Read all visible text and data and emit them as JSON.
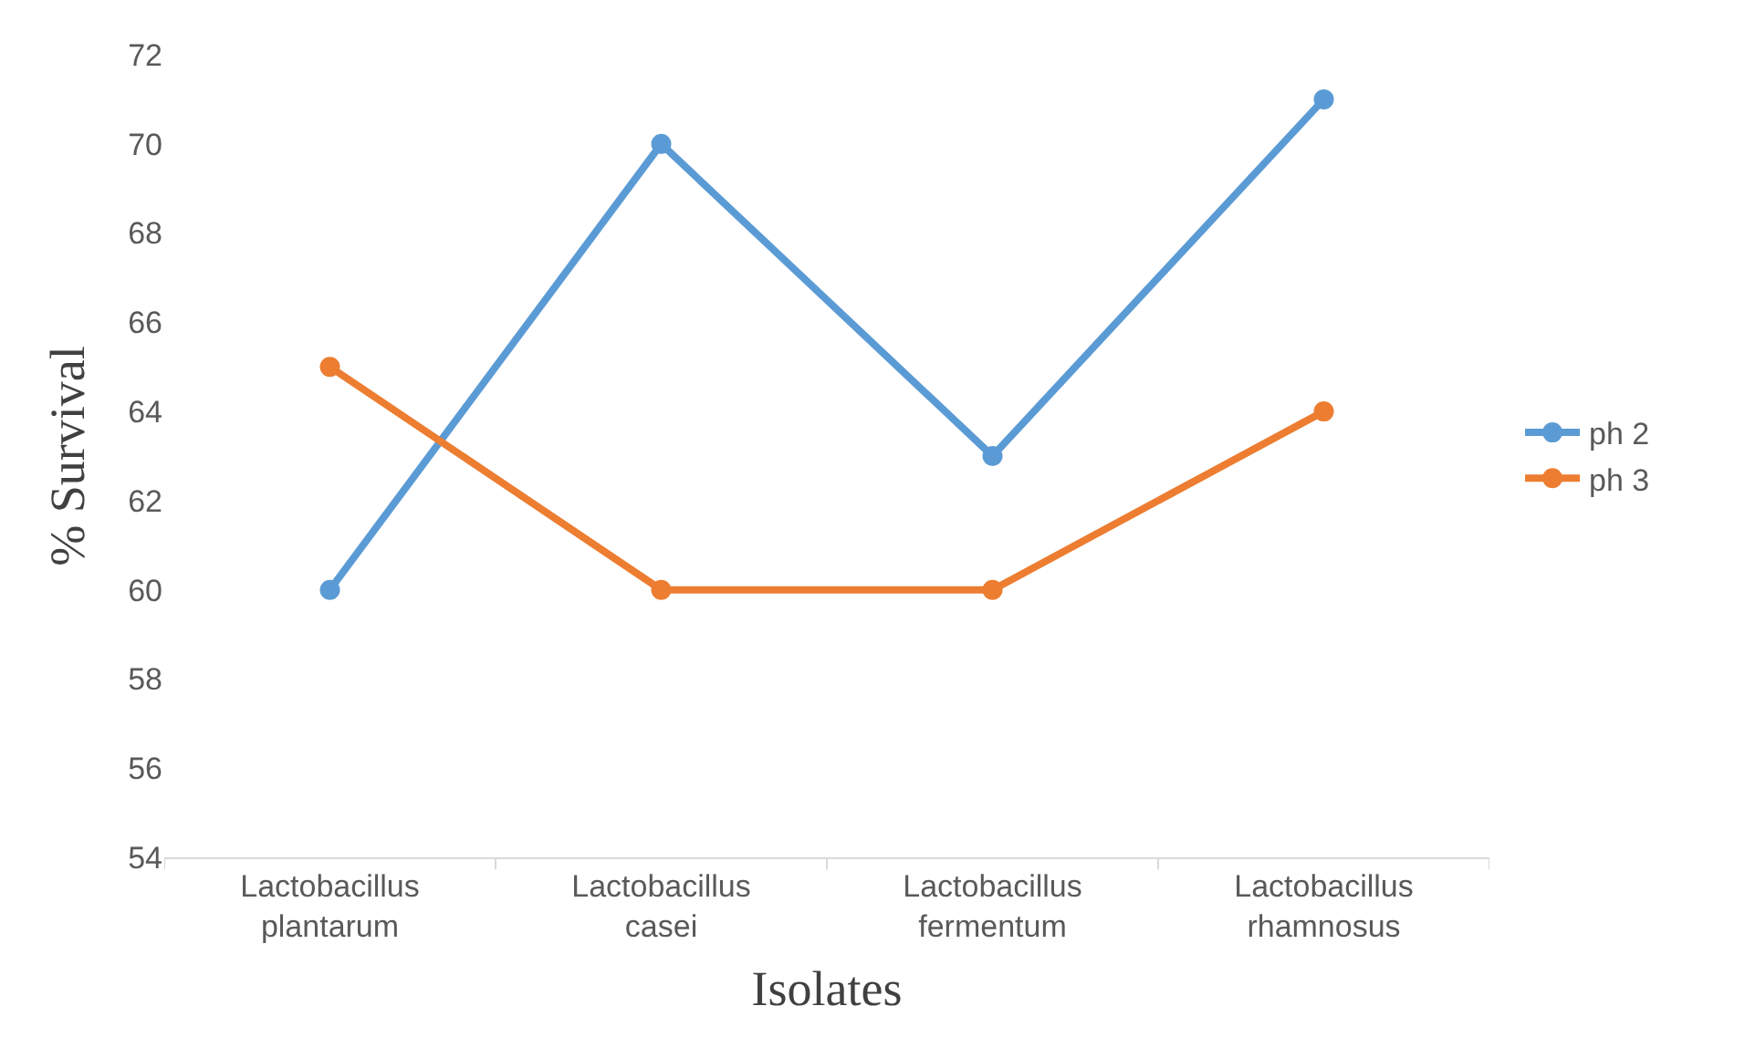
{
  "chart_data": {
    "type": "line",
    "xlabel": "Isolates",
    "ylabel": "% Survival",
    "categories": [
      "Lactobacillus plantarum",
      "Lactobacillus casei",
      "Lactobacillus fermentum",
      "Lactobacillus rhamnosus"
    ],
    "series": [
      {
        "name": "ph 2",
        "color": "#5b9bd5",
        "values": [
          60,
          70,
          63,
          71
        ]
      },
      {
        "name": "ph 3",
        "color": "#ed7d31",
        "values": [
          65,
          60,
          60,
          64
        ]
      }
    ],
    "ylim": [
      54,
      72
    ],
    "yticks": [
      54,
      56,
      58,
      60,
      62,
      64,
      66,
      68,
      70,
      72
    ],
    "grid": false,
    "legend": "right",
    "marker": "circle",
    "line_style": "solid"
  }
}
